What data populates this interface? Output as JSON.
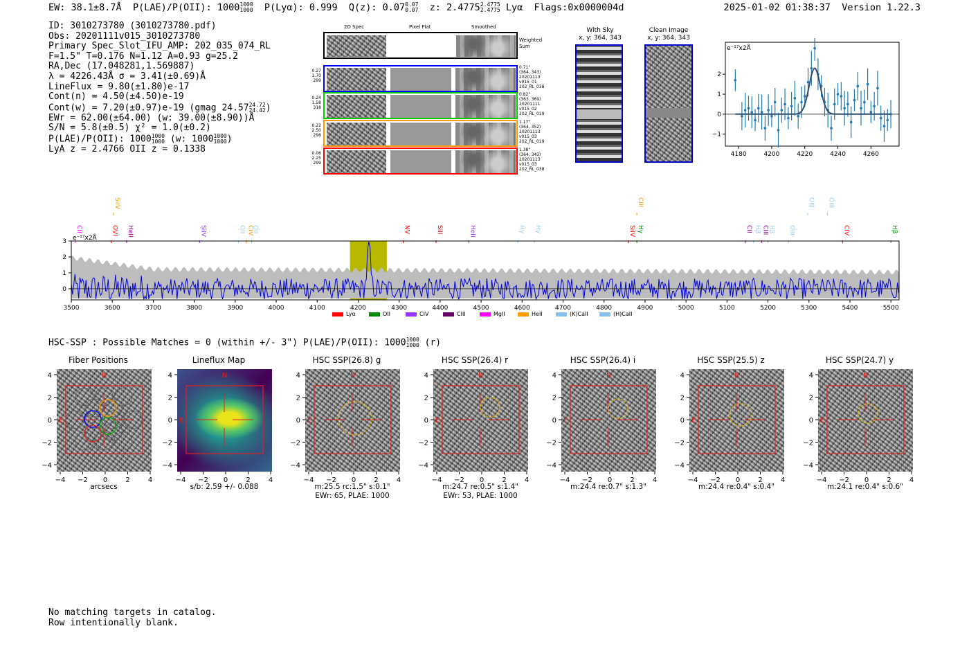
{
  "header": {
    "ew": "EW: 38.1±8.7Å",
    "plae": "P(LAE)/P(OII): 1000",
    "plae_hi": "1000",
    "plae_lo": "1000",
    "plya": "P(Lyα): 0.999",
    "qz": "Q(z): 0.07",
    "qz_hi": "0.07",
    "qz_lo": "0.07",
    "z": "z: 2.4775",
    "z_hi": "2.4775",
    "z_lo": "2.4775",
    "line": "Lyα",
    "flags": "Flags:0x0000004d",
    "timestamp": "2025-01-02 01:38:37",
    "version": "Version 1.22.3"
  },
  "info": {
    "id": "ID: 3010273780 (3010273780.pdf)",
    "obs": "Obs: 20201111v015_3010273780",
    "primary": "Primary Spec_Slot_IFU_AMP: 202_035_074_RL",
    "fwhm": "F=1.5\"  T=0.176  N=1.12  A=0.93  g=25.2",
    "radec": "RA,Dec (17.048281,1.569887)",
    "lambda": "λ = 4226.43Å  σ = 3.41(±0.69)Å",
    "lineflux": "LineFlux = 9.80(±1.80)e-17",
    "contn": "Cont(n) = 4.50(±4.50)e-19",
    "contw": "Cont(w) = 7.20(±0.97)e-19 (gmag 24.57",
    "contw_hi": "24.72",
    "contw_lo": "24.42",
    "ewr": "EWr = 62.00(±64.00) (w: 39.00(±8.90))Å",
    "sn": "S/N = 5.8(±0.5)  χ² = 1.0(±0.2)",
    "plae": "P(LAE)/P(OII): 1000",
    "plae_hi": "1000",
    "plae_lo": "1000",
    "plae_w": "(w: 1000",
    "plae_w_hi": "1000",
    "plae_w_lo": "1000",
    "lya_z": "LyA z = 2.4766   OII z = 0.1338"
  },
  "spec2d": {
    "col_headers": [
      "2D Spec",
      "Pixel Flat",
      "Smoothed"
    ],
    "weighted_label": "Weighted Sum",
    "rows": [
      {
        "left": [
          "0.27",
          "1.70",
          "299"
        ],
        "right": [
          "0.71\"",
          "(364, 343)",
          "20201113",
          "v015_01",
          "202_RL_038"
        ],
        "color": "#0000ff"
      },
      {
        "left": [
          "0.24",
          "1.58",
          "318"
        ],
        "right": [
          "0.82\"",
          "(363, 369)",
          "20201111",
          "v015_02",
          "202_RL_019"
        ],
        "color": "#00cc00"
      },
      {
        "left": [
          "0.22",
          "2.50",
          "298"
        ],
        "right": [
          "1.17\"",
          "(364, 352)",
          "20201113",
          "v015_03",
          "202_RL_019"
        ],
        "color": "#ff9900"
      },
      {
        "left": [
          "0.06",
          "2.25",
          "299"
        ],
        "right": [
          "1.38\"",
          "(364, 343)",
          "20201113",
          "v015_03",
          "202_RL_038"
        ],
        "color": "#ff0000"
      }
    ]
  },
  "sky": {
    "with_sky": "With Sky",
    "with_sky_xy": "x, y: 364, 343",
    "clean": "Clean Image",
    "clean_xy": "x, y: 364, 343"
  },
  "zoom_chart": {
    "ylabel": "e⁻¹⁷x2Å",
    "x_ticks": [
      "4180",
      "4200",
      "4220",
      "4240",
      "4260"
    ],
    "y_ticks": [
      "2",
      "1",
      "0",
      "−1"
    ]
  },
  "chart_data": {
    "type": "line",
    "title": "",
    "ylabel": "e⁻¹⁷x2Å",
    "xlim": [
      3500,
      5520
    ],
    "ylim": [
      -0.7,
      3
    ],
    "x_ticks": [
      3500,
      3600,
      3700,
      3800,
      3900,
      4000,
      4100,
      4200,
      4300,
      4400,
      4500,
      4600,
      4700,
      4800,
      4900,
      5000,
      5100,
      5200,
      5300,
      5400,
      5500
    ],
    "y_ticks": [
      3,
      2,
      1,
      0
    ],
    "highlight_band": [
      4180,
      4270
    ],
    "line_peak": 4226,
    "line_markers": [
      {
        "label": "CII",
        "x": 3510,
        "color": "#ff00ff"
      },
      {
        "label": "SiIV",
        "x": 3603,
        "color": "#ff9900"
      },
      {
        "label": "OVI",
        "x": 3597,
        "color": "#ff0000"
      },
      {
        "label": "HeII",
        "x": 3635,
        "color": "#990099"
      },
      {
        "label": "SiIV",
        "x": 3813,
        "color": "#9933ff"
      },
      {
        "label": "OII",
        "x": 3908,
        "color": "#99ccee"
      },
      {
        "label": "CIV",
        "x": 3928,
        "color": "#ff9900"
      },
      {
        "label": "OII",
        "x": 3940,
        "color": "#99ccee"
      },
      {
        "label": "NV",
        "x": 4310,
        "color": "#ff0000"
      },
      {
        "label": "SiII",
        "x": 4390,
        "color": "#ff0000"
      },
      {
        "label": "HeII",
        "x": 4470,
        "color": "#9933ff"
      },
      {
        "label": "Hγ",
        "x": 4590,
        "color": "#99ccee"
      },
      {
        "label": "Hγ",
        "x": 4630,
        "color": "#99ccee"
      },
      {
        "label": "SiIV",
        "x": 4860,
        "color": "#ff0000"
      },
      {
        "label": "CIII",
        "x": 4880,
        "color": "#ff9900"
      },
      {
        "label": "Hγ",
        "x": 4880,
        "color": "#009900"
      },
      {
        "label": "CII",
        "x": 5145,
        "color": "#990099"
      },
      {
        "label": "Hβ",
        "x": 5165,
        "color": "#99ccee"
      },
      {
        "label": "CIII",
        "x": 5185,
        "color": "#990099"
      },
      {
        "label": "Hβ",
        "x": 5200,
        "color": "#99ccee"
      },
      {
        "label": "OIII",
        "x": 5250,
        "color": "#99ccee"
      },
      {
        "label": "OIII",
        "x": 5297,
        "color": "#99ccee"
      },
      {
        "label": "OIII",
        "x": 5345,
        "color": "#99ccee"
      },
      {
        "label": "CIV",
        "x": 5382,
        "color": "#ff0000"
      },
      {
        "label": "Hβ",
        "x": 5500,
        "color": "#009900"
      }
    ],
    "legend": [
      {
        "name": "Lyα",
        "color": "#ff0000"
      },
      {
        "name": "OII",
        "color": "#008800"
      },
      {
        "name": "CIV",
        "color": "#9933ff"
      },
      {
        "name": "CIII",
        "color": "#660066"
      },
      {
        "name": "MgII",
        "color": "#ff00ff"
      },
      {
        "name": "HeII",
        "color": "#ff9900"
      },
      {
        "name": "(K)CaII",
        "color": "#88c0ee"
      },
      {
        "name": "(H)CaII",
        "color": "#88c0ee"
      }
    ],
    "zoom": {
      "xlim": [
        4172,
        4277
      ],
      "ylim": [
        -1.6,
        3.6
      ],
      "x": [
        4178,
        4182,
        4184,
        4186,
        4188,
        4190,
        4192,
        4194,
        4196,
        4198,
        4200,
        4202,
        4204,
        4206,
        4208,
        4210,
        4212,
        4214,
        4216,
        4218,
        4220,
        4222,
        4224,
        4226,
        4228,
        4230,
        4232,
        4234,
        4236,
        4238,
        4240,
        4242,
        4244,
        4246,
        4248,
        4250,
        4252,
        4254,
        4256,
        4258,
        4260,
        4262,
        4264,
        4266,
        4268,
        4270,
        4272
      ],
      "y": [
        1.7,
        -0.1,
        0.2,
        0.3,
        0.1,
        -0.3,
        0.3,
        0.1,
        -0.7,
        0.2,
        -0.1,
        0.6,
        -0.8,
        0.2,
        0.5,
        -0.2,
        0.4,
        0.8,
        -0.1,
        0.6,
        0.9,
        1.6,
        2.3,
        3.3,
        2.0,
        1.4,
        0.6,
        0.2,
        -0.7,
        0.5,
        1.0,
        0.9,
        0.3,
        0.5,
        -0.4,
        0.7,
        1.4,
        0.3,
        0.6,
        1.5,
        0.1,
        0.4,
        1.3,
        -0.2,
        -0.6,
        -0.3,
        0.0
      ],
      "fit_center": 4226,
      "fit_sigma": 3.41,
      "fit_amp": 2.3
    }
  },
  "hsc": {
    "title": "HSC-SSP : Possible Matches = 0 (within +/- 3\")  P(LAE)/P(OII): 1000",
    "title_hi": "1000",
    "title_lo": "1000",
    "title_suffix": "(r)"
  },
  "cutouts": [
    {
      "title": "Fiber Positions",
      "cap1": "arcsecs",
      "cap2": ""
    },
    {
      "title": "Lineflux Map",
      "cap1": "s/b: 2.59 +/- 0.088",
      "cap2": ""
    },
    {
      "title": "HSC SSP(26.8) g",
      "cap1": "m:25.5 rc:1.5\"  s:0.1\"",
      "cap2": "EWr: 65, PLAE: 1000"
    },
    {
      "title": "HSC SSP(26.4) r",
      "cap1": "m:24.7  re:0.5\"  s:1.4\"",
      "cap2": "EWr: 53, PLAE: 1000"
    },
    {
      "title": "HSC SSP(26.4) i",
      "cap1": "m:24.4  re:0.7\"  s:1.3\"",
      "cap2": ""
    },
    {
      "title": "HSC SSP(25.5) z",
      "cap1": "m:24.4  re:0.4\"  s:0.4\"",
      "cap2": ""
    },
    {
      "title": "HSC SSP(24.7) y",
      "cap1": "m:24.1  re:0.4\"  s:0.6\"",
      "cap2": ""
    }
  ],
  "cutout_axis": {
    "y_ticks": [
      "4",
      "2",
      "0",
      "−2",
      "−4"
    ],
    "x_ticks": [
      "−4",
      "−2",
      "0",
      "2",
      "4"
    ],
    "north": "N",
    "east": "E"
  },
  "footer": {
    "line1": "No matching targets in catalog.",
    "line2": "Row intentionally blank."
  }
}
